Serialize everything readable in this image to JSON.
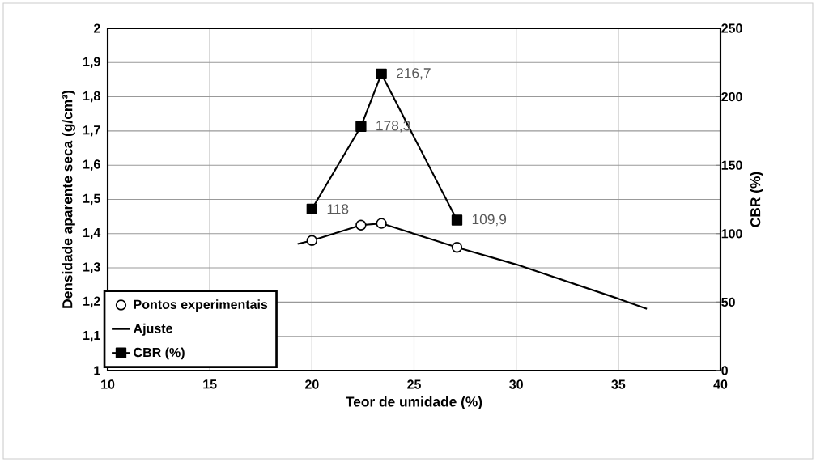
{
  "chart_data": {
    "type": "line",
    "xlabel": "Teor de umidade (%)",
    "ylabel": "Densidade aparente seca (g/cm³)",
    "y2label": "CBR (%)",
    "xlim": [
      10,
      40
    ],
    "xticks": [
      10,
      15,
      20,
      25,
      30,
      35,
      40
    ],
    "ylim": [
      1,
      2
    ],
    "yticks": [
      1,
      {
        "value": 1.1,
        "label": "1,1"
      },
      {
        "value": 1.2,
        "label": "1,2"
      },
      {
        "value": 1.3,
        "label": "1,3"
      },
      {
        "value": 1.4,
        "label": "1,4"
      },
      {
        "value": 1.5,
        "label": "1,5"
      },
      {
        "value": 1.6,
        "label": "1,6"
      },
      {
        "value": 1.7,
        "label": "1,7"
      },
      {
        "value": 1.8,
        "label": "1,8"
      },
      {
        "value": 1.9,
        "label": "1,9"
      },
      2
    ],
    "y2lim": [
      0,
      250
    ],
    "y2ticks": [
      0,
      50,
      100,
      150,
      200,
      250
    ],
    "grid": true,
    "legend": "bottom left",
    "series": [
      {
        "name": "Pontos experimentais",
        "type": "scatter",
        "marker": "circle",
        "color": "#000000",
        "x": [
          20,
          22.4,
          23.4,
          27.1
        ],
        "values": [
          1.38,
          1.425,
          1.43,
          1.36
        ]
      },
      {
        "name": "Ajuste",
        "marker": "none",
        "color": "#000000",
        "x": [
          19.3,
          20,
          22.4,
          23.4,
          27.1,
          30,
          35,
          36.4
        ],
        "values": [
          1.37,
          1.38,
          1.425,
          1.43,
          1.36,
          1.31,
          1.21,
          1.18
        ]
      },
      {
        "name": "CBR (%)",
        "type": "line",
        "marker": "square",
        "axis": "y2",
        "color": "#000000",
        "x": [
          20,
          22.4,
          23.4,
          27.1
        ],
        "values": [
          118,
          178.3,
          216.7,
          109.9
        ],
        "value_labels": [
          "118",
          "178,3",
          "216,7",
          "109,9"
        ]
      }
    ]
  }
}
